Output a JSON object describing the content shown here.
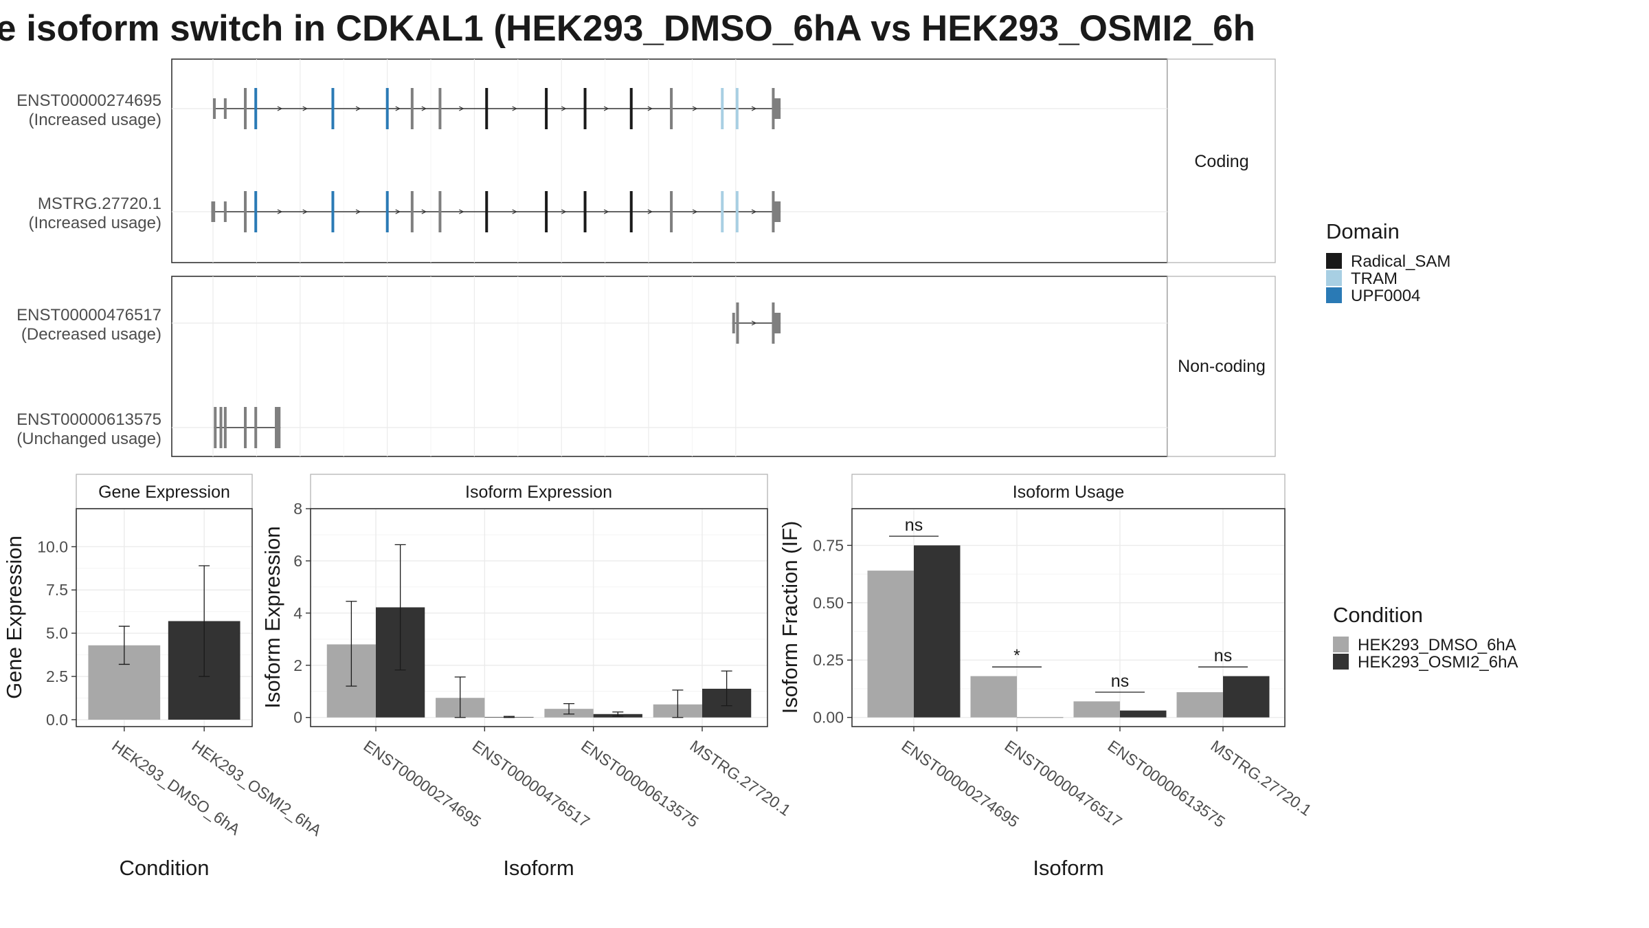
{
  "title": "e isoform switch in CDKAL1 (HEK293_DMSO_6hA vs HEK293_OSMI2_6h",
  "colors": {
    "DMSO": "#a8a8a8",
    "OSMI2": "#333333",
    "Radical_SAM": "#1a1a1a",
    "TRAM": "#a8cfe3",
    "UPF0004": "#2a7ab5",
    "exon": "#7f7f7f",
    "grid": "#ebebeb"
  },
  "structure": {
    "facets": [
      "Coding",
      "Non-coding"
    ],
    "transcripts": [
      {
        "facet": "Coding",
        "label_line1": "ENST00000274695",
        "label_line2": "(Increased usage)",
        "exons": [
          {
            "start": 0.0,
            "end": 0.5,
            "domain": null,
            "utr": true
          },
          {
            "start": 2.5,
            "end": 2.7,
            "domain": null,
            "utr": true
          },
          {
            "start": 7.1,
            "end": 7.4,
            "domain": null
          },
          {
            "start": 9.5,
            "end": 9.8,
            "domain": "UPF0004"
          },
          {
            "start": 27.2,
            "end": 27.5,
            "domain": "UPF0004"
          },
          {
            "start": 39.7,
            "end": 40.0,
            "domain": "UPF0004"
          },
          {
            "start": 45.4,
            "end": 45.6,
            "domain": null
          },
          {
            "start": 51.8,
            "end": 52.1,
            "domain": null
          },
          {
            "start": 62.5,
            "end": 62.8,
            "domain": "Radical_SAM"
          },
          {
            "start": 76.2,
            "end": 76.5,
            "domain": "Radical_SAM"
          },
          {
            "start": 85.1,
            "end": 85.4,
            "domain": "Radical_SAM"
          },
          {
            "start": 95.7,
            "end": 96.3,
            "domain": "Radical_SAM"
          },
          {
            "start": 104.9,
            "end": 105.2,
            "domain": null
          },
          {
            "start": 116.6,
            "end": 116.9,
            "domain": "TRAM"
          },
          {
            "start": 120.0,
            "end": 120.6,
            "domain": "TRAM"
          },
          {
            "start": 128.3,
            "end": 128.6,
            "domain": null
          },
          {
            "start": 128.6,
            "end": 130.3,
            "domain": null,
            "utr": true
          }
        ]
      },
      {
        "facet": "Coding",
        "label_line1": "MSTRG.27720.1",
        "label_line2": "(Increased usage)",
        "exons": [
          {
            "start": -0.4,
            "end": 0.5,
            "domain": null,
            "utr": true
          },
          {
            "start": 2.5,
            "end": 2.7,
            "domain": null,
            "utr": true
          },
          {
            "start": 7.1,
            "end": 7.4,
            "domain": null
          },
          {
            "start": 9.5,
            "end": 9.8,
            "domain": "UPF0004"
          },
          {
            "start": 27.2,
            "end": 27.5,
            "domain": "UPF0004"
          },
          {
            "start": 39.7,
            "end": 40.0,
            "domain": "UPF0004"
          },
          {
            "start": 45.4,
            "end": 45.6,
            "domain": null
          },
          {
            "start": 51.8,
            "end": 52.1,
            "domain": null
          },
          {
            "start": 62.5,
            "end": 62.8,
            "domain": "Radical_SAM"
          },
          {
            "start": 76.2,
            "end": 76.5,
            "domain": "Radical_SAM"
          },
          {
            "start": 85.1,
            "end": 85.4,
            "domain": "Radical_SAM"
          },
          {
            "start": 95.7,
            "end": 96.3,
            "domain": "Radical_SAM"
          },
          {
            "start": 104.9,
            "end": 105.2,
            "domain": null
          },
          {
            "start": 116.6,
            "end": 116.9,
            "domain": "TRAM"
          },
          {
            "start": 120.0,
            "end": 120.6,
            "domain": "TRAM"
          },
          {
            "start": 128.3,
            "end": 128.6,
            "domain": null
          },
          {
            "start": 128.6,
            "end": 130.3,
            "domain": null,
            "utr": true
          }
        ]
      },
      {
        "facet": "Non-coding",
        "label_line1": "ENST00000476517",
        "label_line2": "(Decreased usage)",
        "exons": [
          {
            "start": 119.2,
            "end": 119.5,
            "domain": null,
            "utr": true
          },
          {
            "start": 120.1,
            "end": 120.6,
            "domain": null
          },
          {
            "start": 128.3,
            "end": 128.6,
            "domain": null
          },
          {
            "start": 128.6,
            "end": 130.3,
            "domain": null,
            "utr": true
          }
        ]
      },
      {
        "facet": "Non-coding",
        "label_line1": "ENST00000613575",
        "label_line2": "(Unchanged usage)",
        "exons": [
          {
            "start": 0.2,
            "end": 0.5,
            "domain": null
          },
          {
            "start": 1.5,
            "end": 1.8,
            "domain": null
          },
          {
            "start": 2.5,
            "end": 2.8,
            "domain": null
          },
          {
            "start": 7.1,
            "end": 7.4,
            "domain": null
          },
          {
            "start": 9.5,
            "end": 9.8,
            "domain": null
          },
          {
            "start": 14.2,
            "end": 15.5,
            "domain": null
          }
        ]
      }
    ]
  },
  "domain_legend": {
    "title": "Domain",
    "items": [
      {
        "label": "Radical_SAM",
        "color": "#1a1a1a"
      },
      {
        "label": "TRAM",
        "color": "#a8cfe3"
      },
      {
        "label": "UPF0004",
        "color": "#2a7ab5"
      }
    ]
  },
  "condition_legend": {
    "title": "Condition",
    "items": [
      {
        "label": "HEK293_DMSO_6hA",
        "color": "#a8a8a8"
      },
      {
        "label": "HEK293_OSMI2_6hA",
        "color": "#333333"
      }
    ]
  },
  "chart_data": [
    {
      "type": "bar",
      "title": "Gene Expression",
      "xlabel": "Condition",
      "ylabel": "Gene Expression",
      "ylim": [
        -0.4,
        12.2
      ],
      "yticks": [
        "0.0",
        "2.5",
        "5.0",
        "7.5",
        "10.0"
      ],
      "ytick_values": [
        0,
        2.5,
        5.0,
        7.5,
        10.0
      ],
      "categories": [
        "HEK293_DMSO_6hA",
        "HEK293_OSMI2_6hA"
      ],
      "values": [
        4.3,
        5.7
      ],
      "error_low": [
        3.2,
        2.5
      ],
      "error_high": [
        5.4,
        8.9
      ],
      "colors": [
        "#a8a8a8",
        "#333333"
      ]
    },
    {
      "type": "bar",
      "title": "Isoform Expression",
      "xlabel": "Isoform",
      "ylabel": "Isoform Expression",
      "ylim": [
        -0.35,
        8.0
      ],
      "yticks": [
        "0",
        "2",
        "4",
        "6",
        "8"
      ],
      "ytick_values": [
        0,
        2,
        4,
        6,
        8
      ],
      "categories": [
        "ENST00000274695",
        "ENST00000476517",
        "ENST00000613575",
        "MSTRG.27720.1"
      ],
      "series": [
        {
          "name": "HEK293_DMSO_6hA",
          "values": [
            2.8,
            0.75,
            0.33,
            0.5
          ],
          "error_low": [
            1.2,
            0.0,
            0.13,
            0.0
          ],
          "error_high": [
            4.45,
            1.55,
            0.53,
            1.05
          ]
        },
        {
          "name": "HEK293_OSMI2_6hA",
          "values": [
            4.22,
            0.02,
            0.13,
            1.1
          ],
          "error_low": [
            1.82,
            0.0,
            0.05,
            0.45
          ],
          "error_high": [
            6.62,
            0.04,
            0.21,
            1.78
          ]
        }
      ]
    },
    {
      "type": "bar",
      "title": "Isoform Usage",
      "xlabel": "Isoform",
      "ylabel": "Isoform Fraction (IF)",
      "ylim": [
        -0.04,
        0.91
      ],
      "yticks": [
        "0.00",
        "0.25",
        "0.50",
        "0.75"
      ],
      "ytick_values": [
        0,
        0.25,
        0.5,
        0.75
      ],
      "categories": [
        "ENST00000274695",
        "ENST00000476517",
        "ENST00000613575",
        "MSTRG.27720.1"
      ],
      "series": [
        {
          "name": "HEK293_DMSO_6hA",
          "values": [
            0.64,
            0.18,
            0.07,
            0.11
          ]
        },
        {
          "name": "HEK293_OSMI2_6hA",
          "values": [
            0.75,
            0.0,
            0.03,
            0.18
          ]
        }
      ],
      "significance": [
        {
          "label": "ns",
          "y": 0.79
        },
        {
          "label": "*",
          "y": 0.22
        },
        {
          "label": "ns",
          "y": 0.11
        },
        {
          "label": "ns",
          "y": 0.22
        }
      ]
    }
  ]
}
